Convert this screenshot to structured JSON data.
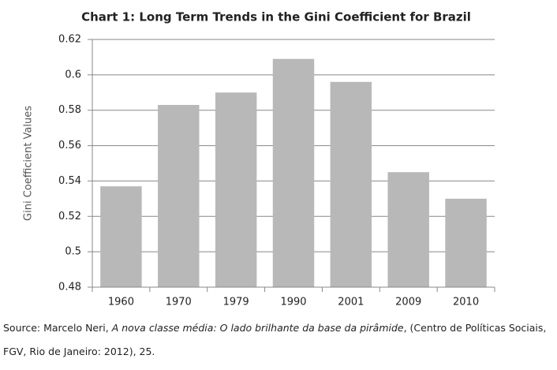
{
  "chart_data": {
    "type": "bar",
    "title": "Chart 1: Long Term Trends in the Gini Coefficient for Brazil",
    "ylabel": "Gini Coefficient Values",
    "categories": [
      "1960",
      "1970",
      "1979",
      "1990",
      "2001",
      "2009",
      "2010"
    ],
    "values": [
      0.537,
      0.583,
      0.59,
      0.609,
      0.596,
      0.545,
      0.53
    ],
    "color": "#b8b8b8",
    "ylim": [
      0.48,
      0.62
    ],
    "yticks": [
      0.48,
      0.5,
      0.52,
      0.54,
      0.56,
      0.58,
      0.6,
      0.62
    ],
    "grid": true
  },
  "source": {
    "prefix": "Source: Marcelo Neri, ",
    "title": "A nova classe média: O lado brilhante da base da pirâmide",
    "suffix": ", (Centro de Políticas Sociais, FGV, Rio de Janeiro: 2012), 25."
  }
}
